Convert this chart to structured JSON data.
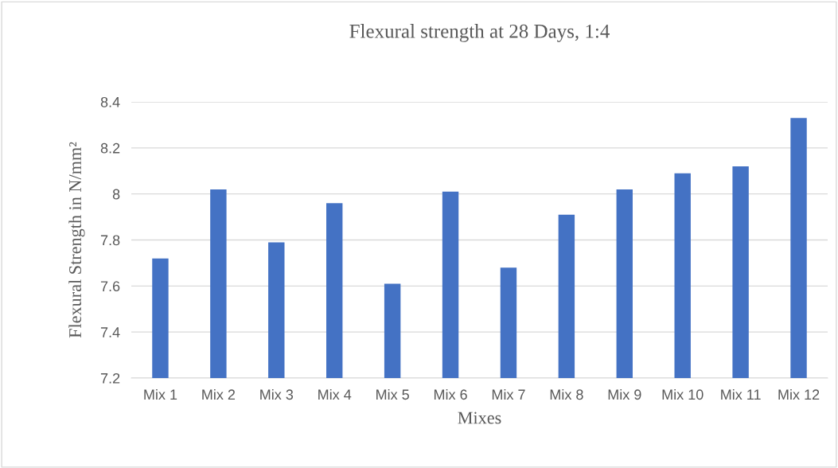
{
  "chart_data": {
    "type": "bar",
    "title": "Flexural strength at 28 Days, 1:4",
    "xlabel": "Mixes",
    "ylabel": "Flexural Strength in N/mm²",
    "categories": [
      "Mix 1",
      "Mix 2",
      "Mix 3",
      "Mix 4",
      "Mix 5",
      "Mix 6",
      "Mix 7",
      "Mix 8",
      "Mix 9",
      "Mix 10",
      "Mix 11",
      "Mix 12"
    ],
    "values": [
      7.72,
      8.02,
      7.79,
      7.96,
      7.61,
      8.01,
      7.68,
      7.91,
      8.02,
      8.09,
      8.12,
      8.33
    ],
    "color": "#4472c4",
    "ylim": [
      7.2,
      8.4
    ],
    "yticks": [
      7.2,
      7.4,
      7.6,
      7.8,
      8,
      8.2,
      8.4
    ],
    "grid": "y",
    "legend": false
  }
}
